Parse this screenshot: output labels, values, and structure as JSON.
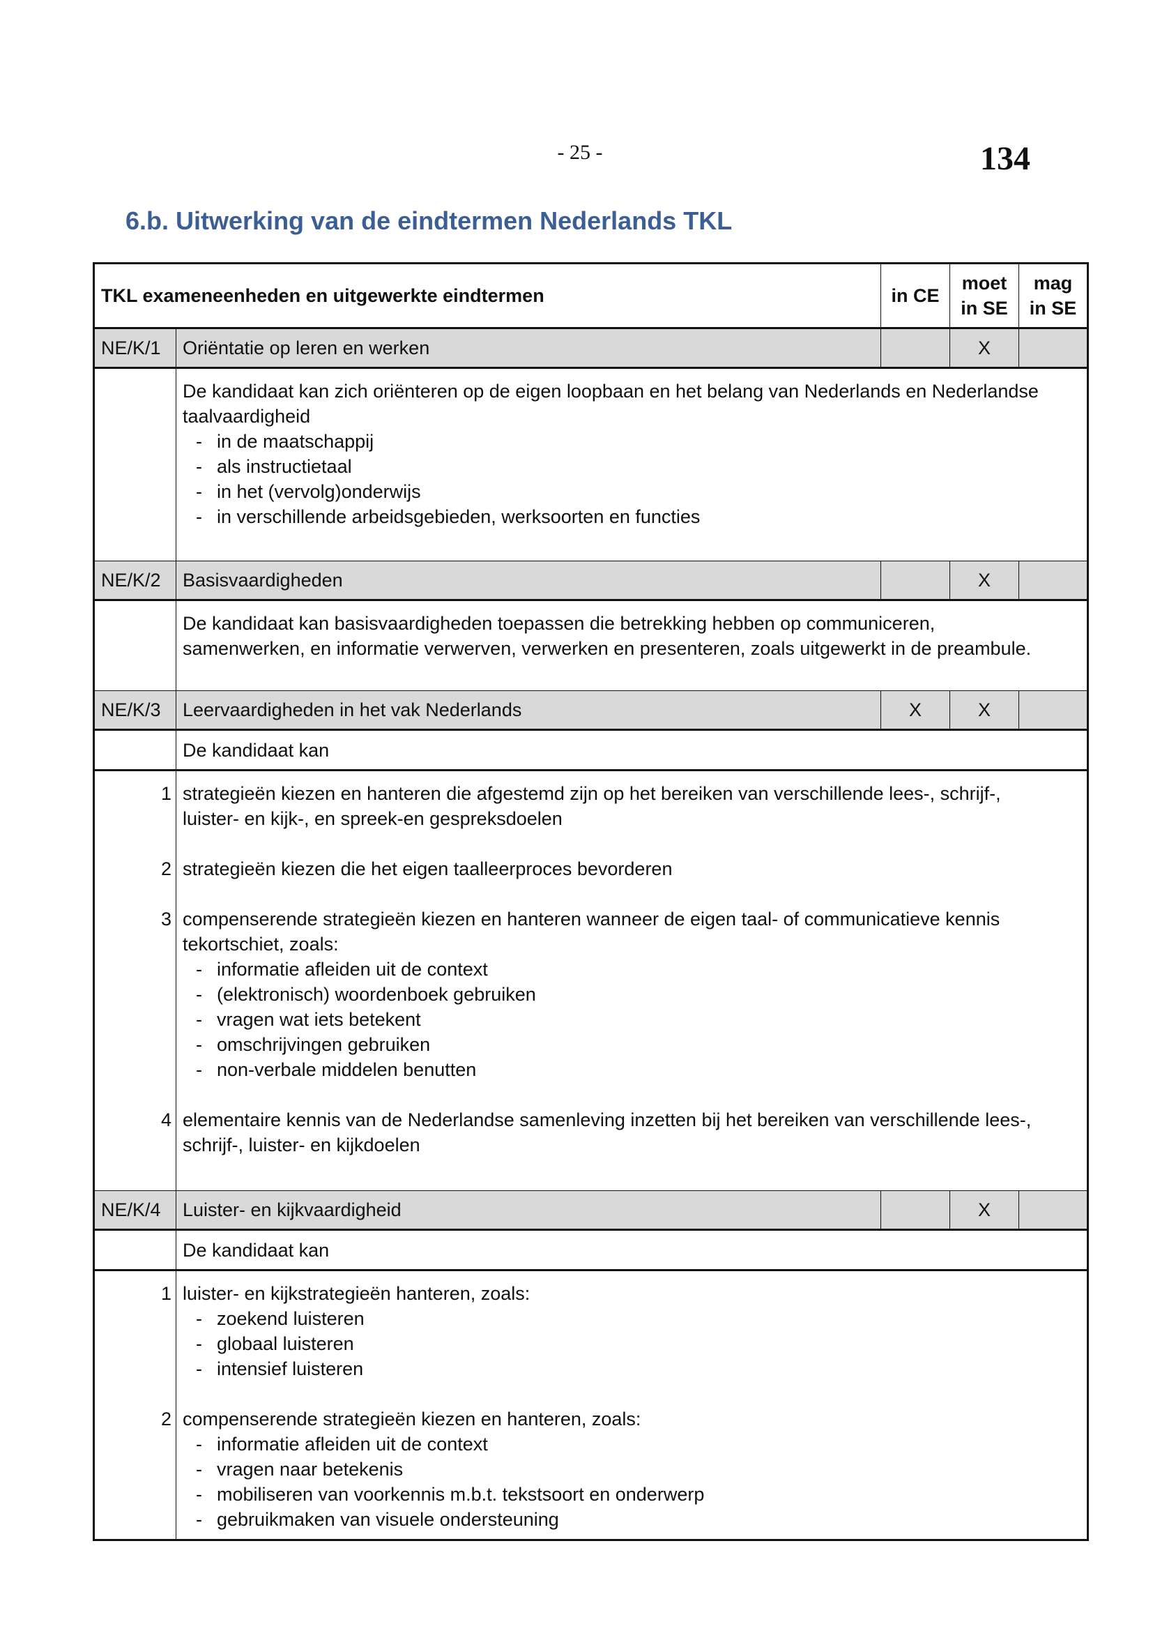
{
  "header": {
    "page_number": "- 25 -",
    "stamp_number": "134"
  },
  "title": "6.b. Uitwerking van de eindtermen Nederlands TKL",
  "colors": {
    "title": "#3b5f95",
    "section_row_bg": "#d9d9d9"
  },
  "table": {
    "columns": [
      "TKL exameneenheden en uitgewerkte eindtermen",
      "in CE",
      "moet in SE",
      "mag in SE"
    ],
    "column_lines": {
      "in_ce": [
        "in CE"
      ],
      "moet": [
        "moet",
        "in SE"
      ],
      "mag": [
        "mag",
        "in SE"
      ]
    },
    "sections": [
      {
        "code": "NE/K/1",
        "title": "Oriëntatie op leren en werken",
        "in_ce": "",
        "moet_in_se": "X",
        "mag_in_se": "",
        "items": [
          {
            "num": "",
            "lines": [
              "De kandidaat kan zich oriënteren op de eigen loopbaan en het belang van Nederlands en Nederlandse",
              "taalvaardigheid"
            ],
            "bullets": [
              "in de maatschappij",
              "als instructietaal",
              "in het (vervolg)onderwijs",
              "in verschillende arbeidsgebieden, werksoorten en functies"
            ]
          }
        ]
      },
      {
        "code": "NE/K/2",
        "title": "Basisvaardigheden",
        "in_ce": "",
        "moet_in_se": "X",
        "mag_in_se": "",
        "items": [
          {
            "num": "",
            "lines": [
              "De kandidaat kan basisvaardigheden toepassen die betrekking hebben op communiceren,",
              "samenwerken, en informatie verwerven, verwerken en presenteren, zoals uitgewerkt in de preambule."
            ],
            "bullets": []
          }
        ]
      },
      {
        "code": "NE/K/3",
        "title": "Leervaardigheden in het vak Nederlands",
        "in_ce": "X",
        "moet_in_se": "X",
        "mag_in_se": "",
        "intro": "De kandidaat kan",
        "items": [
          {
            "num": "1",
            "lines": [
              "strategieën kiezen en hanteren die afgestemd zijn op het bereiken van verschillende lees-, schrijf-,",
              "luister- en kijk-, en spreek-en gespreksdoelen"
            ],
            "bullets": []
          },
          {
            "num": "2",
            "lines": [
              "strategieën kiezen die het eigen taalleerproces bevorderen"
            ],
            "bullets": []
          },
          {
            "num": "3",
            "lines": [
              "compenserende strategieën kiezen en hanteren wanneer de eigen taal- of communicatieve kennis",
              "tekortschiet, zoals:"
            ],
            "bullets": [
              "informatie afleiden uit de context",
              "(elektronisch) woordenboek gebruiken",
              "vragen wat iets betekent",
              "omschrijvingen gebruiken",
              "non-verbale middelen benutten"
            ]
          },
          {
            "num": "4",
            "lines": [
              "elementaire kennis van de Nederlandse samenleving inzetten bij het bereiken van verschillende lees-,",
              "schrijf-, luister- en kijkdoelen"
            ],
            "bullets": []
          }
        ]
      },
      {
        "code": "NE/K/4",
        "title": "Luister- en kijkvaardigheid",
        "in_ce": "",
        "moet_in_se": "X",
        "mag_in_se": "",
        "intro": "De kandidaat kan",
        "items": [
          {
            "num": "1",
            "lines": [
              "luister- en kijkstrategieën hanteren, zoals:"
            ],
            "bullets": [
              "zoekend luisteren",
              "globaal luisteren",
              "intensief luisteren"
            ]
          },
          {
            "num": "2",
            "lines": [
              "compenserende strategieën kiezen en hanteren, zoals:"
            ],
            "bullets": [
              "informatie afleiden uit de context",
              "vragen naar betekenis",
              "mobiliseren van voorkennis m.b.t. tekstsoort en onderwerp",
              "gebruikmaken van visuele ondersteuning"
            ]
          }
        ]
      }
    ]
  }
}
